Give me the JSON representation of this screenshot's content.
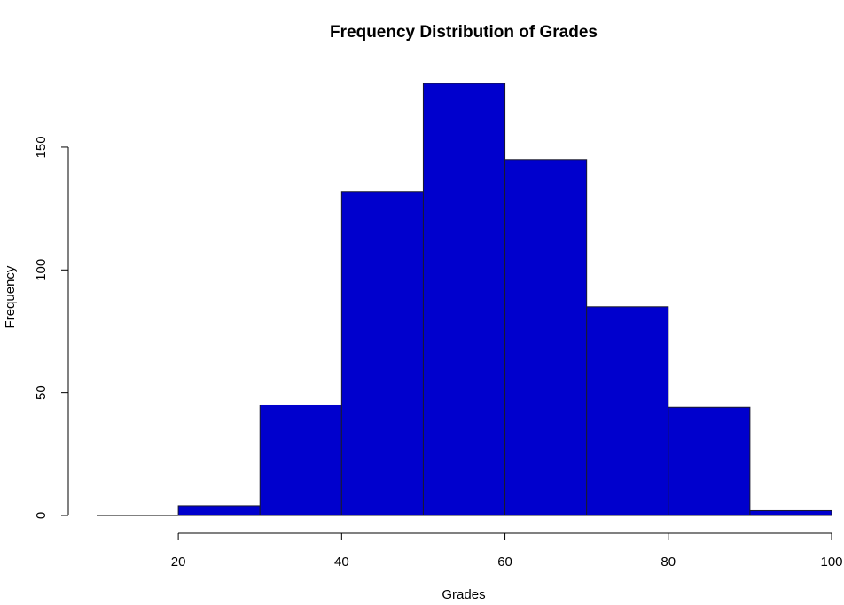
{
  "chart_data": {
    "type": "bar",
    "title": "Frequency Distribution of Grades",
    "xlabel": "Grades",
    "ylabel": "Frequency",
    "bar_color": "#0000cd",
    "bins": [
      {
        "x0": 10,
        "x1": 20,
        "value": 0
      },
      {
        "x0": 20,
        "x1": 30,
        "value": 4
      },
      {
        "x0": 30,
        "x1": 40,
        "value": 45
      },
      {
        "x0": 40,
        "x1": 50,
        "value": 132
      },
      {
        "x0": 50,
        "x1": 60,
        "value": 176
      },
      {
        "x0": 60,
        "x1": 70,
        "value": 145
      },
      {
        "x0": 70,
        "x1": 80,
        "value": 85
      },
      {
        "x0": 80,
        "x1": 90,
        "value": 44
      },
      {
        "x0": 90,
        "x1": 100,
        "value": 2
      }
    ],
    "xlim": [
      10,
      100
    ],
    "ylim": [
      0,
      176
    ],
    "x_ticks": [
      20,
      40,
      60,
      80,
      100
    ],
    "y_ticks": [
      0,
      50,
      100,
      150
    ],
    "grid": false,
    "legend": "none"
  }
}
